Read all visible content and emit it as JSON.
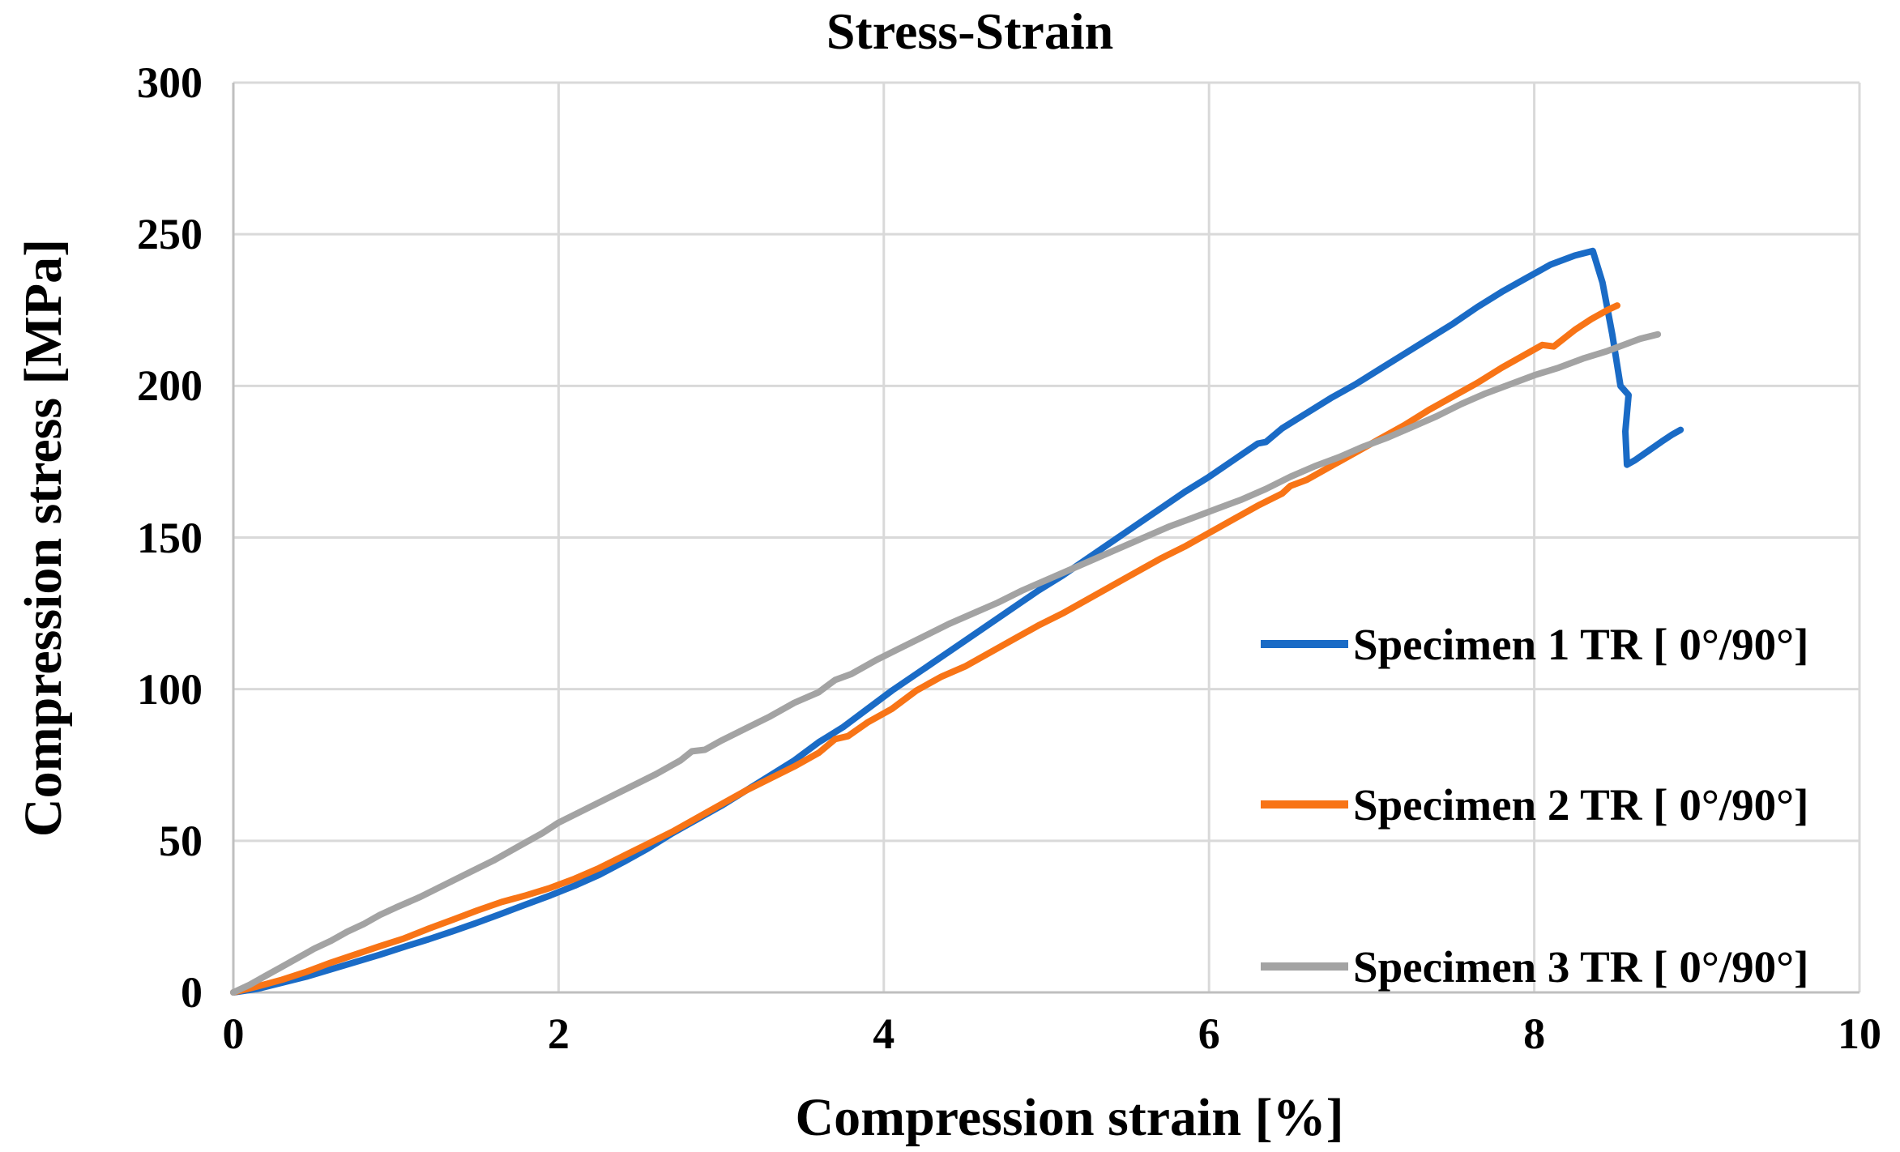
{
  "title": "Stress-Strain",
  "colors": {
    "grid": "#d9d9d9",
    "axis_line": "#bfbfbf",
    "text": "#000000",
    "series_blue": "#1a6bc6",
    "series_orange": "#f87416",
    "series_gray": "#a3a3a3"
  },
  "legend": [
    {
      "label": "Specimen 1 TR [ 0°/90°]",
      "color": "#1a6bc6"
    },
    {
      "label": "Specimen 2 TR [ 0°/90°]",
      "color": "#f87416"
    },
    {
      "label": "Specimen 3 TR [ 0°/90°]",
      "color": "#a3a3a3"
    }
  ],
  "chart_data": {
    "type": "line",
    "title": "Stress-Strain",
    "xlabel": "Compression strain [%]",
    "ylabel": "Compression stress [MPa]",
    "xlim": [
      0,
      10
    ],
    "ylim": [
      0,
      300
    ],
    "x_ticks": [
      0,
      2,
      4,
      6,
      8,
      10
    ],
    "y_ticks": [
      0,
      50,
      100,
      150,
      200,
      250,
      300
    ],
    "grid": true,
    "legend_position": "inside-right",
    "series": [
      {
        "name": "Specimen 1 TR [ 0°/90°]",
        "color": "#1a6bc6",
        "points": [
          [
            0,
            0
          ],
          [
            0.15,
            1.2
          ],
          [
            0.3,
            3.2
          ],
          [
            0.45,
            5.2
          ],
          [
            0.6,
            7.6
          ],
          [
            0.75,
            10
          ],
          [
            0.9,
            12.4
          ],
          [
            1.05,
            15
          ],
          [
            1.2,
            17.5
          ],
          [
            1.35,
            20.2
          ],
          [
            1.5,
            23
          ],
          [
            1.65,
            26
          ],
          [
            1.8,
            29
          ],
          [
            1.95,
            32
          ],
          [
            2.1,
            35.2
          ],
          [
            2.25,
            38.8
          ],
          [
            2.4,
            43
          ],
          [
            2.55,
            47.5
          ],
          [
            2.7,
            52.5
          ],
          [
            2.85,
            57
          ],
          [
            3.0,
            61.5
          ],
          [
            3.15,
            66.5
          ],
          [
            3.3,
            71.5
          ],
          [
            3.45,
            76.5
          ],
          [
            3.6,
            82.5
          ],
          [
            3.75,
            87.5
          ],
          [
            3.9,
            93.5
          ],
          [
            4.05,
            99.5
          ],
          [
            4.2,
            105
          ],
          [
            4.35,
            110.5
          ],
          [
            4.5,
            116
          ],
          [
            4.65,
            121.5
          ],
          [
            4.8,
            127
          ],
          [
            4.95,
            132.5
          ],
          [
            5.1,
            137.5
          ],
          [
            5.25,
            143
          ],
          [
            5.4,
            148.5
          ],
          [
            5.55,
            154
          ],
          [
            5.7,
            159.5
          ],
          [
            5.85,
            165
          ],
          [
            6.0,
            170
          ],
          [
            6.15,
            175.5
          ],
          [
            6.3,
            181
          ],
          [
            6.35,
            181.5
          ],
          [
            6.45,
            186
          ],
          [
            6.6,
            191
          ],
          [
            6.75,
            196
          ],
          [
            6.9,
            200.5
          ],
          [
            7.05,
            205.5
          ],
          [
            7.2,
            210.5
          ],
          [
            7.35,
            215.5
          ],
          [
            7.5,
            220.5
          ],
          [
            7.65,
            226
          ],
          [
            7.8,
            231
          ],
          [
            7.95,
            235.5
          ],
          [
            8.1,
            240
          ],
          [
            8.25,
            243
          ],
          [
            8.36,
            244.5
          ],
          [
            8.42,
            234
          ],
          [
            8.48,
            217
          ],
          [
            8.53,
            200
          ],
          [
            8.58,
            197
          ],
          [
            8.56,
            185
          ],
          [
            8.57,
            174
          ],
          [
            8.62,
            175.5
          ],
          [
            8.7,
            178.5
          ],
          [
            8.78,
            181.5
          ],
          [
            8.85,
            184
          ],
          [
            8.9,
            185.5
          ]
        ]
      },
      {
        "name": "Specimen 2 TR [ 0°/90°]",
        "color": "#f87416",
        "points": [
          [
            0,
            0
          ],
          [
            0.15,
            2
          ],
          [
            0.3,
            4.2
          ],
          [
            0.45,
            6.8
          ],
          [
            0.6,
            9.8
          ],
          [
            0.75,
            12.5
          ],
          [
            0.9,
            15.2
          ],
          [
            1.05,
            17.8
          ],
          [
            1.2,
            21
          ],
          [
            1.35,
            24
          ],
          [
            1.5,
            27
          ],
          [
            1.65,
            29.8
          ],
          [
            1.8,
            32
          ],
          [
            1.95,
            34.5
          ],
          [
            2.1,
            37.5
          ],
          [
            2.25,
            41
          ],
          [
            2.4,
            45
          ],
          [
            2.55,
            49
          ],
          [
            2.7,
            53
          ],
          [
            2.85,
            57.5
          ],
          [
            3.0,
            62
          ],
          [
            3.15,
            66.5
          ],
          [
            3.3,
            70.5
          ],
          [
            3.45,
            74.5
          ],
          [
            3.6,
            79
          ],
          [
            3.7,
            83.5
          ],
          [
            3.78,
            84.5
          ],
          [
            3.9,
            89
          ],
          [
            4.05,
            93.5
          ],
          [
            4.2,
            99.5
          ],
          [
            4.35,
            104
          ],
          [
            4.5,
            107.5
          ],
          [
            4.65,
            112
          ],
          [
            4.8,
            116.5
          ],
          [
            4.95,
            121
          ],
          [
            5.1,
            125
          ],
          [
            5.25,
            129.5
          ],
          [
            5.4,
            134
          ],
          [
            5.55,
            138.5
          ],
          [
            5.7,
            143
          ],
          [
            5.85,
            147
          ],
          [
            6.0,
            151.5
          ],
          [
            6.15,
            156
          ],
          [
            6.3,
            160.5
          ],
          [
            6.45,
            164.5
          ],
          [
            6.5,
            167
          ],
          [
            6.6,
            169
          ],
          [
            6.75,
            173.5
          ],
          [
            6.9,
            178
          ],
          [
            7.05,
            182.5
          ],
          [
            7.2,
            187
          ],
          [
            7.35,
            192
          ],
          [
            7.5,
            196.5
          ],
          [
            7.65,
            201
          ],
          [
            7.8,
            206
          ],
          [
            7.95,
            210.5
          ],
          [
            8.05,
            213.5
          ],
          [
            8.12,
            213
          ],
          [
            8.25,
            218.5
          ],
          [
            8.35,
            222
          ],
          [
            8.45,
            225
          ],
          [
            8.51,
            226.5
          ]
        ]
      },
      {
        "name": "Specimen 3 TR [ 0°/90°]",
        "color": "#a3a3a3",
        "points": [
          [
            0,
            0
          ],
          [
            0.1,
            2.5
          ],
          [
            0.2,
            5.5
          ],
          [
            0.3,
            8.5
          ],
          [
            0.4,
            11.5
          ],
          [
            0.5,
            14.5
          ],
          [
            0.6,
            17
          ],
          [
            0.7,
            20
          ],
          [
            0.8,
            22.5
          ],
          [
            0.9,
            25.5
          ],
          [
            1.0,
            28
          ],
          [
            1.15,
            31.5
          ],
          [
            1.3,
            35.5
          ],
          [
            1.45,
            39.5
          ],
          [
            1.6,
            43.5
          ],
          [
            1.75,
            48
          ],
          [
            1.9,
            52.5
          ],
          [
            2.0,
            56
          ],
          [
            2.15,
            60
          ],
          [
            2.3,
            64
          ],
          [
            2.45,
            68
          ],
          [
            2.6,
            72
          ],
          [
            2.75,
            76.5
          ],
          [
            2.82,
            79.5
          ],
          [
            2.9,
            80
          ],
          [
            3.0,
            83
          ],
          [
            3.15,
            87
          ],
          [
            3.3,
            91
          ],
          [
            3.45,
            95.5
          ],
          [
            3.6,
            99
          ],
          [
            3.7,
            103
          ],
          [
            3.8,
            105
          ],
          [
            3.95,
            109.5
          ],
          [
            4.1,
            113.5
          ],
          [
            4.25,
            117.5
          ],
          [
            4.4,
            121.5
          ],
          [
            4.55,
            125
          ],
          [
            4.7,
            128.5
          ],
          [
            4.85,
            132.5
          ],
          [
            5.0,
            136
          ],
          [
            5.15,
            139.5
          ],
          [
            5.3,
            143
          ],
          [
            5.45,
            146.5
          ],
          [
            5.6,
            150
          ],
          [
            5.75,
            153.5
          ],
          [
            5.9,
            156.5
          ],
          [
            6.05,
            159.5
          ],
          [
            6.2,
            162.5
          ],
          [
            6.35,
            166
          ],
          [
            6.5,
            170
          ],
          [
            6.65,
            173.5
          ],
          [
            6.8,
            176.5
          ],
          [
            6.95,
            180
          ],
          [
            7.1,
            183
          ],
          [
            7.25,
            186.5
          ],
          [
            7.4,
            190
          ],
          [
            7.55,
            194
          ],
          [
            7.7,
            197.5
          ],
          [
            7.85,
            200.5
          ],
          [
            8.0,
            203.5
          ],
          [
            8.15,
            206
          ],
          [
            8.3,
            209
          ],
          [
            8.45,
            211.5
          ],
          [
            8.55,
            213.5
          ],
          [
            8.65,
            215.5
          ],
          [
            8.76,
            217
          ]
        ]
      }
    ]
  }
}
